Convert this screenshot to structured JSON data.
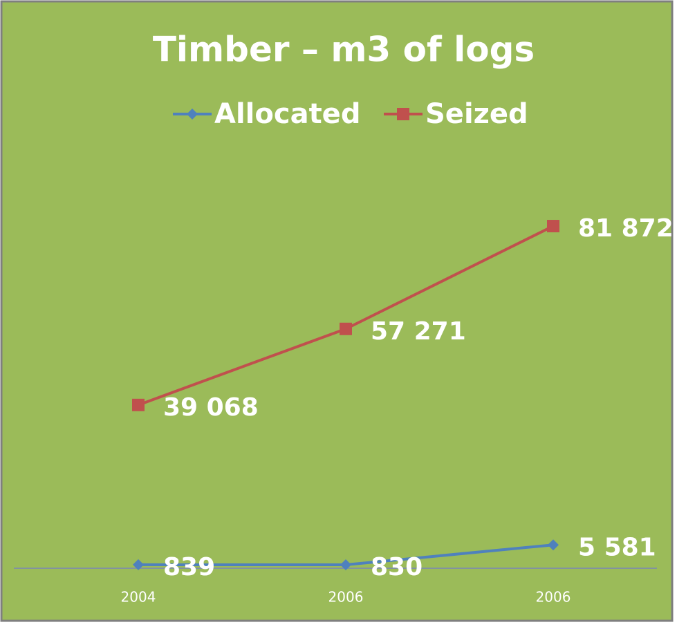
{
  "chart_data": {
    "type": "line",
    "title": "Timber – m3 of logs",
    "categories": [
      "2004",
      "2006",
      "2006"
    ],
    "series": [
      {
        "name": "Allocated",
        "color": "#4f81bd",
        "marker": "diamond",
        "values": [
          839,
          830,
          5581
        ],
        "value_labels": [
          "839",
          "830",
          "5 581"
        ]
      },
      {
        "name": "Seized",
        "color": "#c0504d",
        "marker": "square",
        "values": [
          39068,
          57271,
          81872
        ],
        "value_labels": [
          "39 068",
          "57 271",
          "81 872"
        ]
      }
    ],
    "ylim": [
      0,
      88000
    ],
    "background": "#9bbb59",
    "legend": "top"
  }
}
